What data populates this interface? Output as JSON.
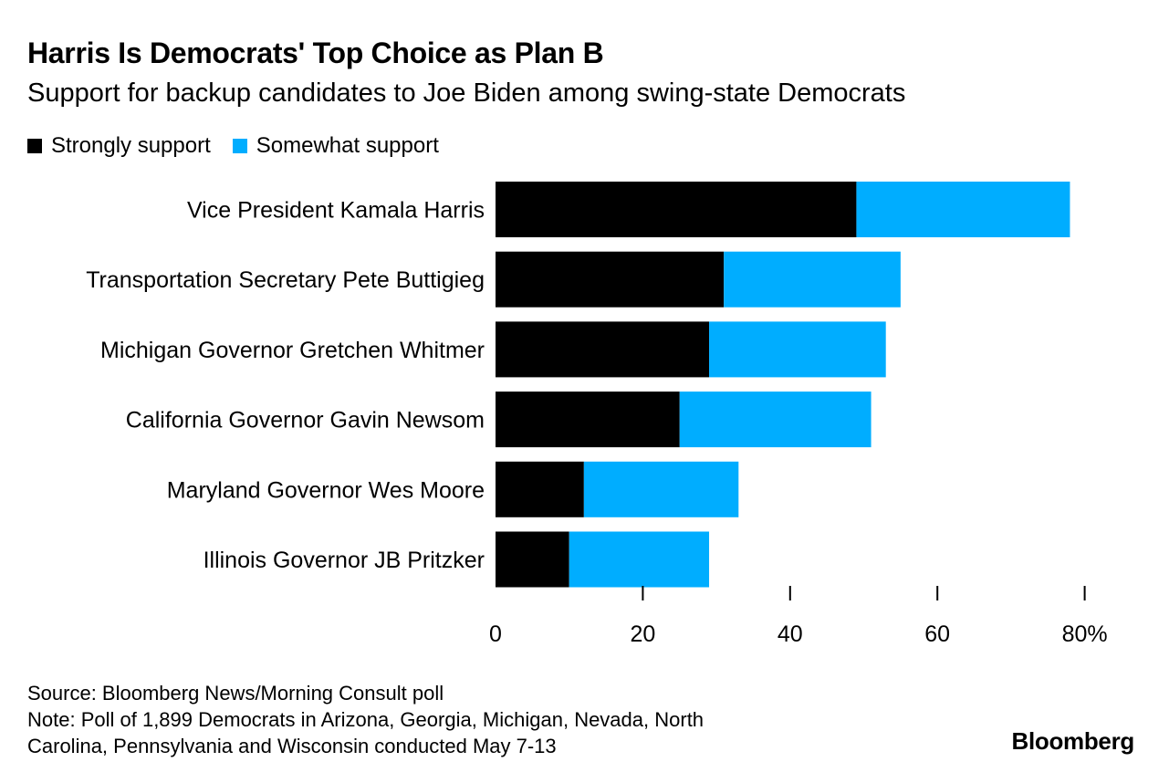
{
  "chart_data": {
    "type": "bar",
    "orientation": "horizontal",
    "stacked": true,
    "title": "Harris Is Democrats' Top Choice as Plan B",
    "subtitle": "Support for backup candidates to Joe Biden among swing-state Democrats",
    "categories": [
      "Vice President Kamala Harris",
      "Transportation Secretary Pete Buttigieg",
      "Michigan Governor Gretchen Whitmer",
      "California Governor Gavin Newsom",
      "Maryland Governor Wes Moore",
      "Illinois Governor JB Pritzker"
    ],
    "series": [
      {
        "name": "Strongly support",
        "color": "#000000",
        "values": [
          49,
          31,
          29,
          25,
          12,
          10
        ]
      },
      {
        "name": "Somewhat support",
        "color": "#00adff",
        "values": [
          29,
          24,
          24,
          26,
          21,
          19
        ]
      }
    ],
    "xlim": [
      0,
      80
    ],
    "xticks": [
      {
        "value": 0,
        "label": "0"
      },
      {
        "value": 20,
        "label": "20"
      },
      {
        "value": 40,
        "label": "40"
      },
      {
        "value": 60,
        "label": "60"
      },
      {
        "value": 80,
        "label": "80%"
      }
    ],
    "legend_position": "top-left",
    "grid": false
  },
  "footer": {
    "source": "Source: Bloomberg News/Morning Consult poll",
    "note_line1": "Note: Poll of 1,899 Democrats in Arizona, Georgia, Michigan, Nevada, North",
    "note_line2": "Carolina, Pennsylvania and Wisconsin conducted May 7-13"
  },
  "brand": "Bloomberg"
}
